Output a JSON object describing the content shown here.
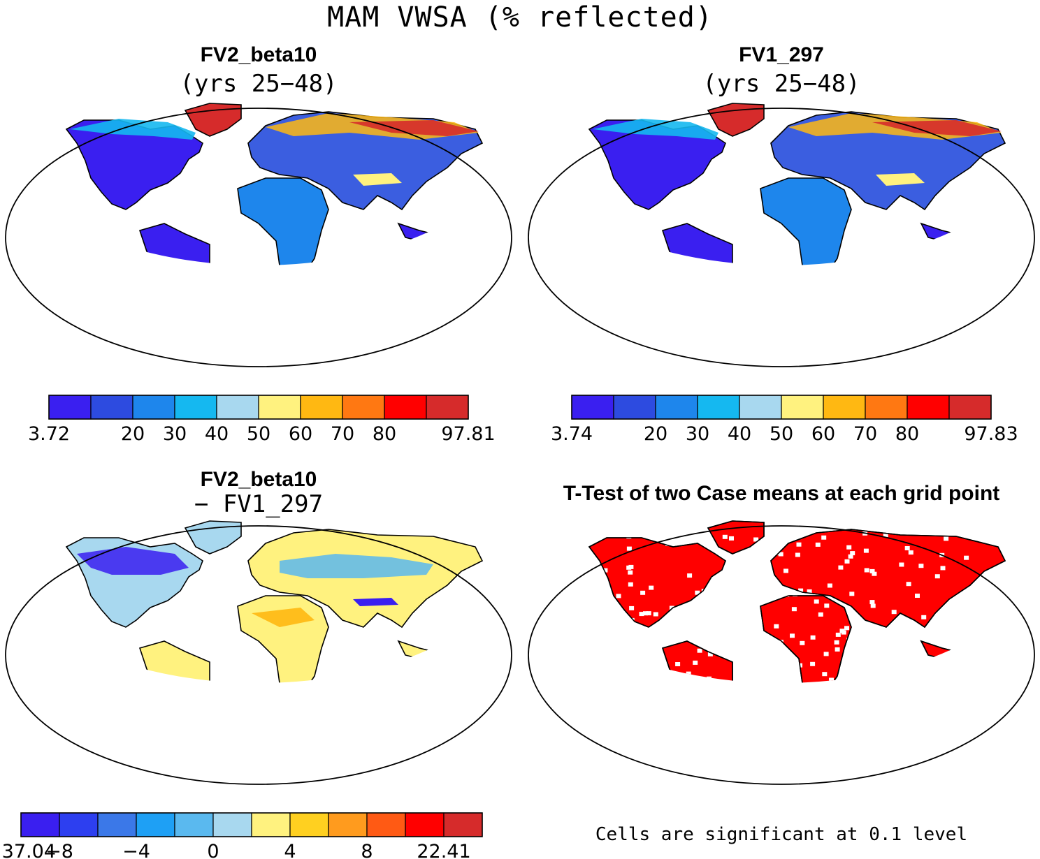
{
  "title": "MAM VWSA (% reflected)",
  "colors": {
    "land_low": "#3a1ff0",
    "land_mid": "#3b5ee0",
    "ice": "#d62b2b",
    "sig": "#ff0000",
    "diff_neutral": "#fff27f"
  },
  "panels": [
    {
      "title": "FV2_beta10",
      "subtitle": "(yrs 25−48)",
      "colorbar": {
        "colors": [
          "#3a1ff0",
          "#2d4be0",
          "#1e86ec",
          "#15b8f0",
          "#a8d8ef",
          "#fff27f",
          "#ffb812",
          "#ff7812",
          "#ff0000",
          "#d62b2b"
        ],
        "labels": [
          "3.72",
          "",
          "20",
          "30",
          "40",
          "50",
          "60",
          "70",
          "80",
          "",
          "97.81"
        ]
      }
    },
    {
      "title": "FV1_297",
      "subtitle": "(yrs 25−48)",
      "colorbar": {
        "colors": [
          "#3a1ff0",
          "#2d4be0",
          "#1e86ec",
          "#15b8f0",
          "#a8d8ef",
          "#fff27f",
          "#ffb812",
          "#ff7812",
          "#ff0000",
          "#d62b2b"
        ],
        "labels": [
          "3.74",
          "",
          "20",
          "30",
          "40",
          "50",
          "60",
          "70",
          "80",
          "",
          "97.83"
        ]
      }
    },
    {
      "title": "FV2_beta10",
      "subtitle": "− FV1_297",
      "colorbar": {
        "colors": [
          "#3a1ff0",
          "#2d3ff0",
          "#3b78e8",
          "#1ea0f5",
          "#5ab9ef",
          "#a8d8ef",
          "#fff27f",
          "#ffd020",
          "#ff9b1e",
          "#ff5a14",
          "#ff0000",
          "#d62b2b"
        ],
        "labels": [
          "−37.04",
          "−8",
          "",
          "−4",
          "",
          "0",
          "",
          "4",
          "",
          "8",
          "",
          "22.41"
        ]
      }
    },
    {
      "title": "T-Test of two Case means at each grid point",
      "subtitle": "",
      "note": "Cells are significant at 0.1 level"
    }
  ]
}
